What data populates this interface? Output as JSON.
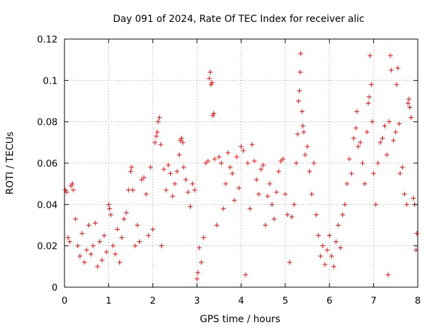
{
  "chart_data": {
    "type": "scatter",
    "title": "Day 091 of 2024, Rate Of TEC Index for receiver alic",
    "xlabel": "GPS time / hours",
    "ylabel": "ROTI / TECUs",
    "xlim": [
      0,
      8
    ],
    "ylim": [
      0,
      0.12
    ],
    "x_ticks": [
      "0",
      "1",
      "2",
      "3",
      "4",
      "5",
      "6",
      "7",
      "8"
    ],
    "y_ticks": [
      "0",
      "0.02",
      "0.04",
      "0.06",
      "0.08",
      "0.1",
      "0.12"
    ],
    "grid": true,
    "marker": "+",
    "color": "#ff0000",
    "series": [
      {
        "name": "ROTI",
        "points": [
          [
            0.02,
            0.047
          ],
          [
            0.05,
            0.046
          ],
          [
            0.08,
            0.024
          ],
          [
            0.12,
            0.022
          ],
          [
            0.15,
            0.049
          ],
          [
            0.18,
            0.05
          ],
          [
            0.2,
            0.047
          ],
          [
            0.25,
            0.033
          ],
          [
            0.3,
            0.02
          ],
          [
            0.35,
            0.015
          ],
          [
            0.4,
            0.026
          ],
          [
            0.45,
            0.012
          ],
          [
            0.5,
            0.018
          ],
          [
            0.55,
            0.03
          ],
          [
            0.6,
            0.016
          ],
          [
            0.65,
            0.02
          ],
          [
            0.7,
            0.031
          ],
          [
            0.75,
            0.01
          ],
          [
            0.8,
            0.022
          ],
          [
            0.85,
            0.013
          ],
          [
            0.9,
            0.025
          ],
          [
            0.95,
            0.017
          ],
          [
            1.0,
            0.04
          ],
          [
            1.02,
            0.038
          ],
          [
            1.05,
            0.035
          ],
          [
            1.1,
            0.02
          ],
          [
            1.15,
            0.016
          ],
          [
            1.2,
            0.028
          ],
          [
            1.25,
            0.012
          ],
          [
            1.3,
            0.024
          ],
          [
            1.35,
            0.033
          ],
          [
            1.4,
            0.036
          ],
          [
            1.45,
            0.047
          ],
          [
            1.5,
            0.056
          ],
          [
            1.52,
            0.058
          ],
          [
            1.55,
            0.047
          ],
          [
            1.6,
            0.02
          ],
          [
            1.65,
            0.03
          ],
          [
            1.7,
            0.022
          ],
          [
            1.75,
            0.052
          ],
          [
            1.8,
            0.053
          ],
          [
            1.85,
            0.045
          ],
          [
            1.9,
            0.025
          ],
          [
            1.95,
            0.058
          ],
          [
            2.0,
            0.028
          ],
          [
            2.05,
            0.07
          ],
          [
            2.08,
            0.073
          ],
          [
            2.1,
            0.075
          ],
          [
            2.12,
            0.08
          ],
          [
            2.15,
            0.082
          ],
          [
            2.18,
            0.069
          ],
          [
            2.2,
            0.02
          ],
          [
            2.25,
            0.057
          ],
          [
            2.3,
            0.047
          ],
          [
            2.35,
            0.059
          ],
          [
            2.4,
            0.055
          ],
          [
            2.45,
            0.044
          ],
          [
            2.5,
            0.05
          ],
          [
            2.55,
            0.056
          ],
          [
            2.6,
            0.064
          ],
          [
            2.62,
            0.071
          ],
          [
            2.65,
            0.072
          ],
          [
            2.68,
            0.07
          ],
          [
            2.7,
            0.058
          ],
          [
            2.75,
            0.052
          ],
          [
            2.8,
            0.046
          ],
          [
            2.85,
            0.039
          ],
          [
            2.9,
            0.05
          ],
          [
            2.95,
            0.047
          ],
          [
            3.0,
            0.004
          ],
          [
            3.02,
            0.007
          ],
          [
            3.05,
            0.019
          ],
          [
            3.1,
            0.012
          ],
          [
            3.15,
            0.024
          ],
          [
            3.2,
            0.06
          ],
          [
            3.25,
            0.061
          ],
          [
            3.28,
            0.101
          ],
          [
            3.3,
            0.104
          ],
          [
            3.32,
            0.098
          ],
          [
            3.34,
            0.099
          ],
          [
            3.36,
            0.083
          ],
          [
            3.38,
            0.084
          ],
          [
            3.4,
            0.062
          ],
          [
            3.45,
            0.03
          ],
          [
            3.5,
            0.063
          ],
          [
            3.55,
            0.06
          ],
          [
            3.6,
            0.038
          ],
          [
            3.65,
            0.05
          ],
          [
            3.7,
            0.065
          ],
          [
            3.75,
            0.058
          ],
          [
            3.8,
            0.055
          ],
          [
            3.85,
            0.042
          ],
          [
            3.9,
            0.063
          ],
          [
            3.95,
            0.048
          ],
          [
            4.0,
            0.068
          ],
          [
            4.05,
            0.066
          ],
          [
            4.1,
            0.006
          ],
          [
            4.15,
            0.06
          ],
          [
            4.2,
            0.038
          ],
          [
            4.25,
            0.069
          ],
          [
            4.3,
            0.061
          ],
          [
            4.35,
            0.052
          ],
          [
            4.4,
            0.045
          ],
          [
            4.45,
            0.057
          ],
          [
            4.5,
            0.059
          ],
          [
            4.55,
            0.03
          ],
          [
            4.6,
            0.044
          ],
          [
            4.65,
            0.05
          ],
          [
            4.7,
            0.04
          ],
          [
            4.75,
            0.033
          ],
          [
            4.8,
            0.046
          ],
          [
            4.85,
            0.056
          ],
          [
            4.9,
            0.061
          ],
          [
            4.95,
            0.062
          ],
          [
            5.0,
            0.045
          ],
          [
            5.05,
            0.035
          ],
          [
            5.1,
            0.012
          ],
          [
            5.15,
            0.034
          ],
          [
            5.2,
            0.04
          ],
          [
            5.25,
            0.06
          ],
          [
            5.28,
            0.074
          ],
          [
            5.3,
            0.09
          ],
          [
            5.32,
            0.095
          ],
          [
            5.34,
            0.104
          ],
          [
            5.35,
            0.113
          ],
          [
            5.38,
            0.085
          ],
          [
            5.4,
            0.078
          ],
          [
            5.42,
            0.075
          ],
          [
            5.45,
            0.064
          ],
          [
            5.5,
            0.068
          ],
          [
            5.55,
            0.056
          ],
          [
            5.6,
            0.045
          ],
          [
            5.65,
            0.06
          ],
          [
            5.7,
            0.035
          ],
          [
            5.75,
            0.025
          ],
          [
            5.8,
            0.015
          ],
          [
            5.85,
            0.02
          ],
          [
            5.9,
            0.011
          ],
          [
            5.95,
            0.018
          ],
          [
            6.0,
            0.025
          ],
          [
            6.05,
            0.015
          ],
          [
            6.1,
            0.01
          ],
          [
            6.15,
            0.022
          ],
          [
            6.2,
            0.03
          ],
          [
            6.25,
            0.019
          ],
          [
            6.3,
            0.035
          ],
          [
            6.35,
            0.04
          ],
          [
            6.4,
            0.05
          ],
          [
            6.45,
            0.062
          ],
          [
            6.5,
            0.055
          ],
          [
            6.55,
            0.072
          ],
          [
            6.6,
            0.077
          ],
          [
            6.62,
            0.085
          ],
          [
            6.65,
            0.068
          ],
          [
            6.7,
            0.07
          ],
          [
            6.75,
            0.06
          ],
          [
            6.8,
            0.05
          ],
          [
            6.85,
            0.075
          ],
          [
            6.88,
            0.089
          ],
          [
            6.9,
            0.092
          ],
          [
            6.92,
            0.112
          ],
          [
            6.95,
            0.098
          ],
          [
            6.97,
            0.08
          ],
          [
            7.0,
            0.055
          ],
          [
            7.05,
            0.04
          ],
          [
            7.1,
            0.06
          ],
          [
            7.15,
            0.07
          ],
          [
            7.2,
            0.072
          ],
          [
            7.25,
            0.078
          ],
          [
            7.3,
            0.064
          ],
          [
            7.35,
            0.08
          ],
          [
            7.38,
            0.112
          ],
          [
            7.4,
            0.105
          ],
          [
            7.45,
            0.071
          ],
          [
            7.5,
            0.075
          ],
          [
            7.52,
            0.098
          ],
          [
            7.55,
            0.106
          ],
          [
            7.58,
            0.079
          ],
          [
            7.6,
            0.055
          ],
          [
            7.65,
            0.058
          ],
          [
            7.7,
            0.045
          ],
          [
            7.75,
            0.04
          ],
          [
            7.78,
            0.089
          ],
          [
            7.8,
            0.091
          ],
          [
            7.82,
            0.087
          ],
          [
            7.85,
            0.082
          ],
          [
            7.9,
            0.043
          ],
          [
            7.93,
            0.04
          ],
          [
            7.96,
            0.018
          ],
          [
            7.98,
            0.026
          ],
          [
            7.33,
            0.006
          ]
        ]
      }
    ]
  }
}
